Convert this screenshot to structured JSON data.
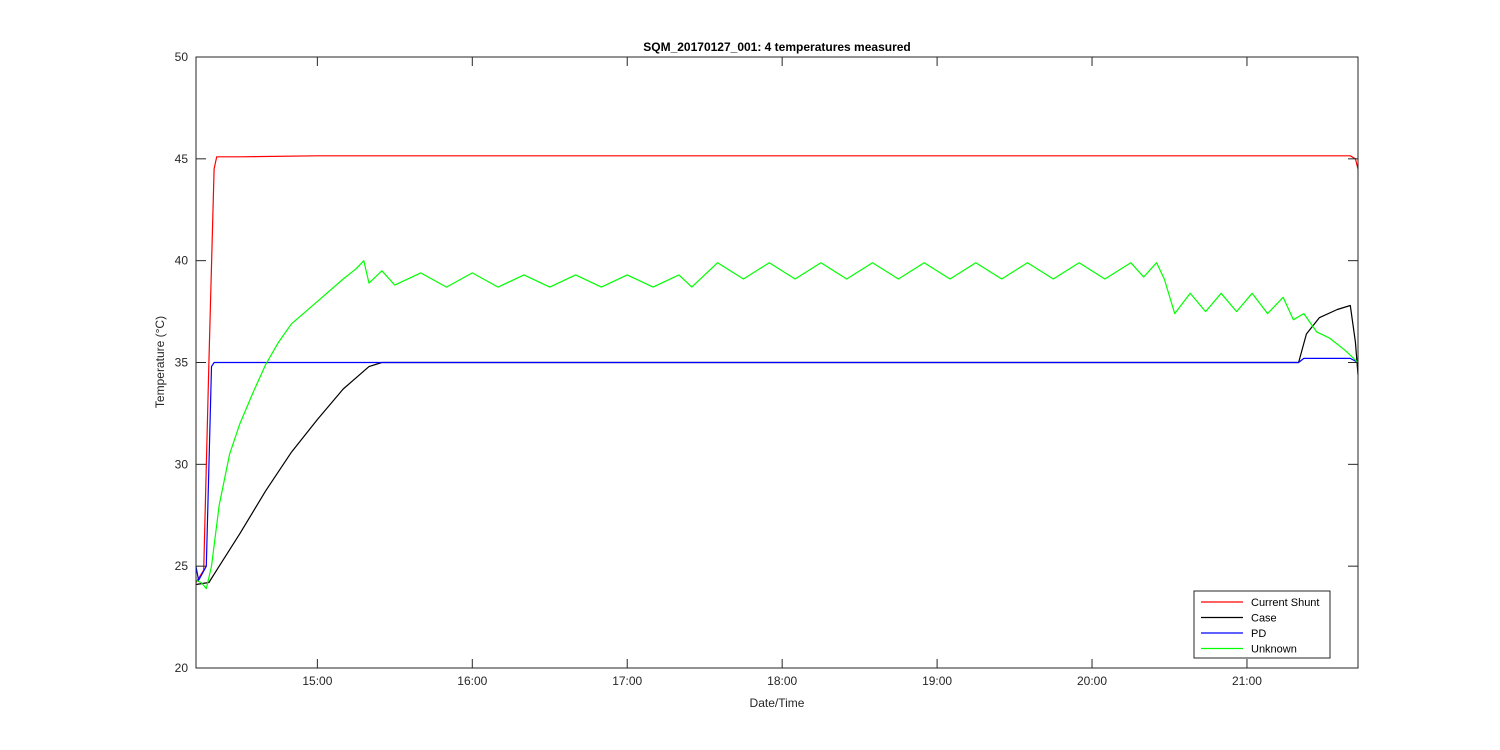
{
  "chart_data": {
    "type": "line",
    "title": "SQM_20170127_001: 4 temperatures measured",
    "xlabel": "Date/Time",
    "ylabel": "Temperature (°C)",
    "xlim": [
      "14:13",
      "21:43"
    ],
    "ylim": [
      20,
      50
    ],
    "x_ticks": [
      "15:00",
      "16:00",
      "17:00",
      "18:00",
      "19:00",
      "20:00",
      "21:00"
    ],
    "y_ticks": [
      20,
      25,
      30,
      35,
      40,
      45,
      50
    ],
    "grid": false,
    "legend_position": "bottom-right",
    "series": [
      {
        "name": "Current Shunt",
        "color": "#ff0000",
        "points": [
          [
            "14:13",
            24.2
          ],
          [
            "14:16",
            24.8
          ],
          [
            "14:18",
            35
          ],
          [
            "14:20",
            44.5
          ],
          [
            "14:21",
            45.1
          ],
          [
            "14:30",
            45.1
          ],
          [
            "15:00",
            45.15
          ],
          [
            "16:00",
            45.15
          ],
          [
            "17:00",
            45.15
          ],
          [
            "18:00",
            45.15
          ],
          [
            "19:00",
            45.15
          ],
          [
            "20:00",
            45.15
          ],
          [
            "21:00",
            45.15
          ],
          [
            "21:40",
            45.15
          ],
          [
            "21:42",
            45
          ],
          [
            "21:43",
            44.5
          ]
        ]
      },
      {
        "name": "Case",
        "color": "#000000",
        "points": [
          [
            "14:13",
            24.1
          ],
          [
            "14:18",
            24.2
          ],
          [
            "14:22",
            25
          ],
          [
            "14:30",
            26.6
          ],
          [
            "14:40",
            28.7
          ],
          [
            "14:50",
            30.6
          ],
          [
            "15:00",
            32.2
          ],
          [
            "15:10",
            33.7
          ],
          [
            "15:20",
            34.8
          ],
          [
            "15:25",
            35
          ],
          [
            "16:00",
            35
          ],
          [
            "17:00",
            35
          ],
          [
            "18:00",
            35
          ],
          [
            "19:00",
            35
          ],
          [
            "20:00",
            35
          ],
          [
            "21:00",
            35
          ],
          [
            "21:20",
            35
          ],
          [
            "21:23",
            36.4
          ],
          [
            "21:28",
            37.2
          ],
          [
            "21:35",
            37.6
          ],
          [
            "21:40",
            37.8
          ],
          [
            "21:42",
            36
          ],
          [
            "21:43",
            34.4
          ]
        ]
      },
      {
        "name": "PD",
        "color": "#0000ff",
        "points": [
          [
            "14:13",
            25
          ],
          [
            "14:14",
            24.3
          ],
          [
            "14:17",
            25
          ],
          [
            "14:19",
            34.8
          ],
          [
            "14:20",
            35
          ],
          [
            "15:00",
            35
          ],
          [
            "16:00",
            35
          ],
          [
            "17:00",
            35
          ],
          [
            "18:00",
            35
          ],
          [
            "19:00",
            35
          ],
          [
            "20:00",
            35
          ],
          [
            "21:00",
            35
          ],
          [
            "21:20",
            35
          ],
          [
            "21:22",
            35.2
          ],
          [
            "21:40",
            35.2
          ],
          [
            "21:43",
            35
          ]
        ]
      },
      {
        "name": "Unknown",
        "color": "#00ff00",
        "points": [
          [
            "14:13",
            24.3
          ],
          [
            "14:15",
            24.2
          ],
          [
            "14:17",
            23.9
          ],
          [
            "14:19",
            25
          ],
          [
            "14:22",
            28
          ],
          [
            "14:26",
            30.5
          ],
          [
            "14:30",
            32
          ],
          [
            "14:35",
            33.5
          ],
          [
            "14:40",
            34.9
          ],
          [
            "14:45",
            36
          ],
          [
            "14:50",
            36.9
          ],
          [
            "15:00",
            38
          ],
          [
            "15:10",
            39.1
          ],
          [
            "15:15",
            39.6
          ],
          [
            "15:18",
            40
          ],
          [
            "15:20",
            38.9
          ],
          [
            "15:25",
            39.5
          ],
          [
            "15:30",
            38.8
          ],
          [
            "15:40",
            39.4
          ],
          [
            "15:50",
            38.7
          ],
          [
            "16:00",
            39.4
          ],
          [
            "16:10",
            38.7
          ],
          [
            "16:20",
            39.3
          ],
          [
            "16:30",
            38.7
          ],
          [
            "16:40",
            39.3
          ],
          [
            "16:50",
            38.7
          ],
          [
            "17:00",
            39.3
          ],
          [
            "17:10",
            38.7
          ],
          [
            "17:20",
            39.3
          ],
          [
            "17:25",
            38.7
          ],
          [
            "17:35",
            39.9
          ],
          [
            "17:45",
            39.1
          ],
          [
            "17:55",
            39.9
          ],
          [
            "18:05",
            39.1
          ],
          [
            "18:15",
            39.9
          ],
          [
            "18:25",
            39.1
          ],
          [
            "18:35",
            39.9
          ],
          [
            "18:45",
            39.1
          ],
          [
            "18:55",
            39.9
          ],
          [
            "19:05",
            39.1
          ],
          [
            "19:15",
            39.9
          ],
          [
            "19:25",
            39.1
          ],
          [
            "19:35",
            39.9
          ],
          [
            "19:45",
            39.1
          ],
          [
            "19:55",
            39.9
          ],
          [
            "20:05",
            39.1
          ],
          [
            "20:15",
            39.9
          ],
          [
            "20:20",
            39.2
          ],
          [
            "20:25",
            39.9
          ],
          [
            "20:28",
            39.1
          ],
          [
            "20:32",
            37.4
          ],
          [
            "20:38",
            38.4
          ],
          [
            "20:44",
            37.5
          ],
          [
            "20:50",
            38.4
          ],
          [
            "20:56",
            37.5
          ],
          [
            "21:02",
            38.4
          ],
          [
            "21:08",
            37.4
          ],
          [
            "21:14",
            38.2
          ],
          [
            "21:18",
            37.1
          ],
          [
            "21:22",
            37.4
          ],
          [
            "21:27",
            36.5
          ],
          [
            "21:32",
            36.2
          ],
          [
            "21:38",
            35.6
          ],
          [
            "21:43",
            35
          ]
        ]
      }
    ]
  }
}
